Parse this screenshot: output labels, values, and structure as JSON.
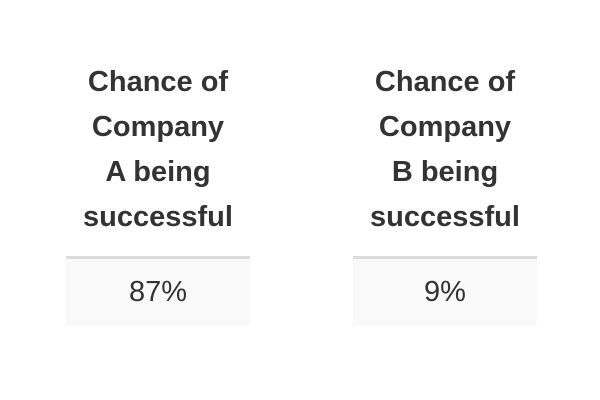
{
  "stats": [
    {
      "header_lines": [
        "Chance of",
        "Company",
        "A being",
        "successful"
      ],
      "value": "87%"
    },
    {
      "header_lines": [
        "Chance of",
        "Company",
        "B being",
        "successful"
      ],
      "value": "9%"
    }
  ]
}
